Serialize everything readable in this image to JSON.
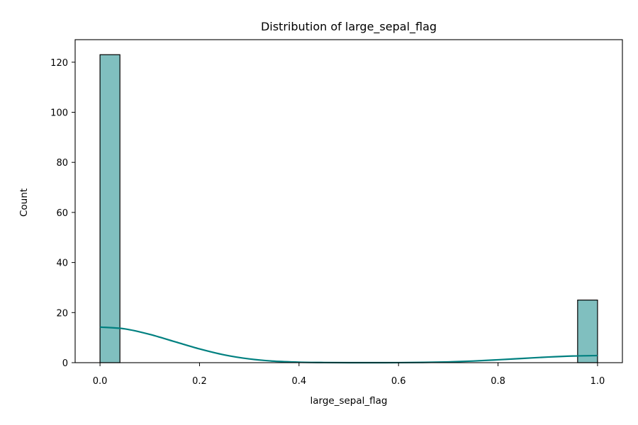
{
  "chart_data": {
    "type": "bar",
    "title": "Distribution of large_sepal_flag",
    "xlabel": "large_sepal_flag",
    "ylabel": "Count",
    "xlim": [
      -0.05,
      1.05
    ],
    "ylim": [
      0,
      129
    ],
    "xticks": [
      0.0,
      0.2,
      0.4,
      0.6,
      0.8,
      1.0
    ],
    "xtick_labels": [
      "0.0",
      "0.2",
      "0.4",
      "0.6",
      "0.8",
      "1.0"
    ],
    "yticks": [
      0,
      20,
      40,
      60,
      80,
      100,
      120
    ],
    "ytick_labels": [
      "0",
      "20",
      "40",
      "60",
      "80",
      "100",
      "120"
    ],
    "bins": [
      {
        "start": 0.0,
        "end": 0.04,
        "count": 123
      },
      {
        "start": 0.96,
        "end": 1.0,
        "count": 25
      }
    ],
    "kde": {
      "x": [
        0.0,
        0.05,
        0.1,
        0.15,
        0.2,
        0.25,
        0.3,
        0.35,
        0.4,
        0.45,
        0.5,
        0.55,
        0.6,
        0.65,
        0.7,
        0.75,
        0.8,
        0.85,
        0.9,
        0.95,
        1.0
      ],
      "y": [
        14.2,
        13.5,
        11.3,
        8.4,
        5.5,
        3.1,
        1.5,
        0.6,
        0.2,
        0.05,
        0.0,
        0.0,
        0.02,
        0.1,
        0.3,
        0.65,
        1.15,
        1.7,
        2.25,
        2.65,
        2.85
      ]
    },
    "grid": false,
    "colors": {
      "bar_fill": "#80bfbf",
      "bar_edge": "#000000",
      "kde_line": "#008080"
    }
  }
}
